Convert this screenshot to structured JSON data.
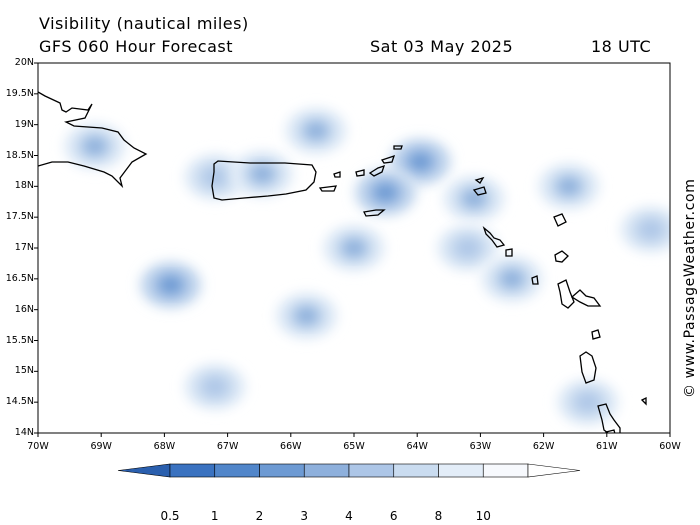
{
  "header": {
    "title": "Visibility (nautical miles)",
    "model": "GFS 060 Hour Forecast",
    "date": "Sat 03 May 2025",
    "time": "18 UTC"
  },
  "credit": "© www.PassageWeather.com",
  "map": {
    "lat_range": [
      14,
      20
    ],
    "lon_range": [
      -70,
      -60
    ],
    "lat_labels": [
      "20N",
      "19.5N",
      "19N",
      "18.5N",
      "18N",
      "17.5N",
      "17N",
      "16.5N",
      "16N",
      "15.5N",
      "15N",
      "14.5N",
      "14N"
    ],
    "lon_labels": [
      "70W",
      "69W",
      "68W",
      "67W",
      "66W",
      "65W",
      "64W",
      "63W",
      "62W",
      "61W",
      "60W"
    ],
    "reduced_visibility_areas": [
      {
        "lon": -69.1,
        "lat": 18.65,
        "vis": 3
      },
      {
        "lon": -67.2,
        "lat": 18.15,
        "vis": 4
      },
      {
        "lon": -66.45,
        "lat": 18.2,
        "vis": 3
      },
      {
        "lon": -65.6,
        "lat": 18.9,
        "vis": 3
      },
      {
        "lon": -63.95,
        "lat": 18.4,
        "vis": 1.5
      },
      {
        "lon": -64.5,
        "lat": 17.9,
        "vis": 2
      },
      {
        "lon": -63.1,
        "lat": 17.8,
        "vis": 2.5
      },
      {
        "lon": -61.6,
        "lat": 18.0,
        "vis": 3
      },
      {
        "lon": -67.9,
        "lat": 16.4,
        "vis": 1.5
      },
      {
        "lon": -65.0,
        "lat": 17.0,
        "vis": 3
      },
      {
        "lon": -65.75,
        "lat": 15.9,
        "vis": 3
      },
      {
        "lon": -63.2,
        "lat": 17.0,
        "vis": 3.5
      },
      {
        "lon": -62.5,
        "lat": 16.5,
        "vis": 3
      },
      {
        "lon": -60.3,
        "lat": 17.3,
        "vis": 4
      },
      {
        "lon": -67.2,
        "lat": 14.75,
        "vis": 4
      },
      {
        "lon": -61.3,
        "lat": 14.5,
        "vis": 4
      }
    ]
  },
  "colorbar": {
    "labels": [
      "0.5",
      "1",
      "2",
      "3",
      "4",
      "6",
      "8",
      "10"
    ],
    "colors": [
      "#3a72c0",
      "#5186ca",
      "#6d9ad3",
      "#8eb0dc",
      "#adc6e7",
      "#cadcf0",
      "#e3edf8",
      "#f7f9fd"
    ]
  }
}
